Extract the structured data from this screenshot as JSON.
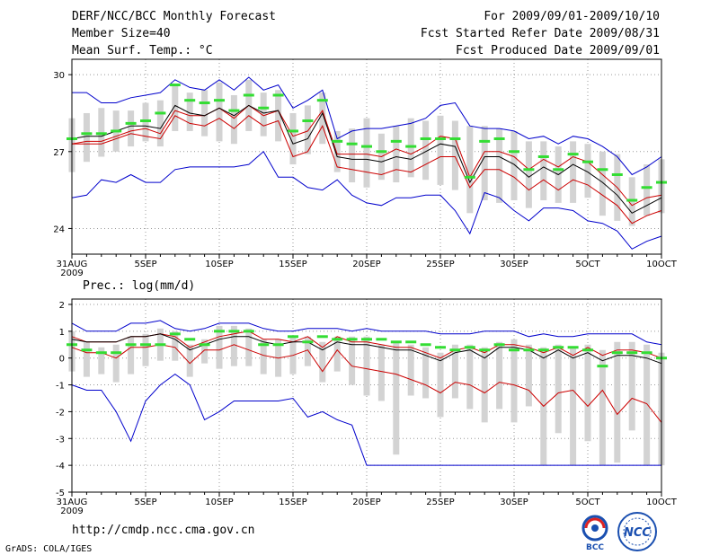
{
  "header": {
    "title": "DERF/NCC/BCC Monthly Forecast",
    "member_size": "Member Size=40",
    "variable": "Mean Surf. Temp.: °C",
    "period": "For 2009/09/01-2009/10/10",
    "started": "Fcst Started Refer Date 2009/08/31",
    "produced": "Fcst Produced Date 2009/09/01"
  },
  "footer": {
    "url": "http://cmdp.ncc.cma.gov.cn",
    "credit": "GrADS: COLA/IGES",
    "logo_bcc": "BCC",
    "logo_ncc": "NCC"
  },
  "colors": {
    "mean": "#000000",
    "p25_75": "#cc0000",
    "extreme": "#0000cc",
    "box": "#d3d3d3",
    "obs": "#33dd33"
  },
  "chart_data": [
    {
      "type": "line",
      "title": "Mean Surf. Temp.: °C",
      "days": 40,
      "ylim": [
        23,
        30.6
      ],
      "yticks": [
        24,
        27,
        30
      ],
      "xtick_days": [
        0,
        5,
        10,
        15,
        20,
        25,
        30,
        35,
        40
      ],
      "xtick_labels": [
        "31AUG",
        "5SEP",
        "10SEP",
        "15SEP",
        "20SEP",
        "25SEP",
        "30SEP",
        "5OCT",
        "10OCT"
      ],
      "xtick_sublabel": "2009",
      "series": [
        {
          "name": "max",
          "values": [
            29.3,
            29.3,
            28.9,
            28.9,
            29.1,
            29.2,
            29.3,
            29.8,
            29.5,
            29.4,
            29.8,
            29.4,
            29.9,
            29.4,
            29.6,
            28.7,
            29.0,
            29.4,
            27.5,
            27.8,
            27.9,
            27.9,
            28.0,
            28.1,
            28.3,
            28.8,
            28.9,
            28.0,
            27.9,
            27.9,
            27.8,
            27.5,
            27.6,
            27.3,
            27.6,
            27.5,
            27.2,
            26.8,
            26.1,
            26.4,
            26.8
          ]
        },
        {
          "name": "p75",
          "values": [
            27.3,
            27.4,
            27.4,
            27.6,
            27.8,
            27.9,
            27.7,
            28.6,
            28.4,
            28.4,
            28.7,
            28.3,
            28.8,
            28.4,
            28.6,
            27.6,
            27.8,
            28.6,
            26.9,
            26.9,
            26.9,
            26.8,
            27.1,
            26.9,
            27.2,
            27.6,
            27.5,
            26.0,
            27.0,
            27.0,
            26.8,
            26.3,
            26.7,
            26.4,
            26.8,
            26.6,
            26.1,
            25.6,
            24.9,
            25.2,
            25.3
          ]
        },
        {
          "name": "mean",
          "values": [
            27.5,
            27.6,
            27.6,
            27.8,
            28.0,
            28.0,
            27.9,
            28.8,
            28.5,
            28.4,
            28.7,
            28.4,
            28.8,
            28.5,
            28.6,
            27.3,
            27.5,
            28.5,
            26.8,
            26.7,
            26.7,
            26.6,
            26.8,
            26.7,
            27.0,
            27.3,
            27.2,
            25.8,
            26.8,
            26.8,
            26.5,
            26.0,
            26.4,
            26.1,
            26.5,
            26.2,
            25.8,
            25.3,
            24.6,
            24.9,
            25.2
          ]
        },
        {
          "name": "p25",
          "values": [
            27.3,
            27.3,
            27.3,
            27.5,
            27.7,
            27.6,
            27.5,
            28.4,
            28.1,
            28.0,
            28.3,
            27.9,
            28.4,
            28.0,
            28.2,
            26.8,
            27.0,
            28.0,
            26.4,
            26.3,
            26.2,
            26.1,
            26.3,
            26.2,
            26.5,
            26.8,
            26.8,
            25.6,
            26.3,
            26.3,
            26.0,
            25.5,
            25.9,
            25.5,
            25.9,
            25.7,
            25.3,
            24.9,
            24.2,
            24.5,
            24.7
          ]
        },
        {
          "name": "min",
          "values": [
            25.2,
            25.3,
            25.9,
            25.8,
            26.1,
            25.8,
            25.8,
            26.3,
            26.4,
            26.4,
            26.4,
            26.4,
            26.5,
            27.0,
            26.0,
            26.0,
            25.6,
            25.5,
            25.9,
            25.3,
            25.0,
            24.9,
            25.2,
            25.2,
            25.3,
            25.3,
            24.7,
            23.8,
            25.4,
            25.2,
            24.7,
            24.3,
            24.8,
            24.8,
            24.7,
            24.3,
            24.2,
            23.9,
            23.2,
            23.5,
            23.7
          ]
        },
        {
          "name": "observed",
          "values": [
            27.5,
            27.7,
            27.7,
            27.8,
            28.1,
            28.2,
            28.5,
            29.6,
            29.0,
            28.9,
            29.0,
            28.6,
            29.2,
            28.7,
            29.2,
            27.8,
            28.2,
            29.0,
            27.4,
            27.3,
            27.2,
            27.0,
            27.4,
            27.2,
            27.5,
            27.5,
            27.5,
            26.0,
            27.4,
            27.5,
            27.0,
            26.3,
            26.8,
            26.3,
            26.9,
            26.6,
            26.3,
            26.1,
            25.1,
            25.6,
            25.8
          ]
        },
        {
          "name": "box_hi",
          "values": [
            28.3,
            28.5,
            28.7,
            28.6,
            28.6,
            28.9,
            29.0,
            29.6,
            29.3,
            29.4,
            29.7,
            29.2,
            29.8,
            29.3,
            29.4,
            28.5,
            28.8,
            29.3,
            27.8,
            27.9,
            28.3,
            27.7,
            28.0,
            28.3,
            28.2,
            28.4,
            28.2,
            28.0,
            28.0,
            27.9,
            27.8,
            27.4,
            27.4,
            27.2,
            27.4,
            27.3,
            27.0,
            26.9,
            26.0,
            26.5,
            26.7
          ]
        },
        {
          "name": "box_lo",
          "values": [
            26.2,
            26.6,
            26.8,
            27.0,
            27.2,
            27.4,
            27.2,
            27.8,
            27.8,
            27.6,
            27.4,
            27.3,
            27.8,
            27.6,
            27.4,
            26.5,
            26.9,
            27.3,
            26.2,
            25.8,
            25.6,
            25.9,
            25.8,
            26.0,
            25.9,
            25.7,
            25.5,
            24.6,
            25.1,
            25.0,
            25.1,
            24.8,
            25.1,
            25.0,
            25.0,
            25.2,
            24.5,
            24.3,
            24.1,
            24.5,
            24.6
          ]
        }
      ]
    },
    {
      "type": "line",
      "title": "Prec.: log(mm/d)",
      "days": 40,
      "ylim": [
        -5,
        2.2
      ],
      "yticks": [
        -5,
        -4,
        -3,
        -2,
        -1,
        0,
        1,
        2
      ],
      "xtick_days": [
        0,
        5,
        10,
        15,
        20,
        25,
        30,
        35,
        40
      ],
      "xtick_labels": [
        "31AUG",
        "5SEP",
        "10SEP",
        "15SEP",
        "20SEP",
        "25SEP",
        "30SEP",
        "5OCT",
        "10OCT"
      ],
      "xtick_sublabel": "2009",
      "series": [
        {
          "name": "max",
          "values": [
            1.3,
            1.0,
            1.0,
            1.0,
            1.3,
            1.3,
            1.4,
            1.1,
            1.0,
            1.1,
            1.3,
            1.3,
            1.3,
            1.1,
            1.0,
            1.0,
            1.1,
            1.1,
            1.1,
            1.0,
            1.1,
            1.0,
            1.0,
            1.0,
            1.0,
            0.9,
            0.9,
            0.9,
            1.0,
            1.0,
            1.0,
            0.8,
            0.9,
            0.8,
            0.8,
            0.9,
            0.9,
            0.9,
            0.9,
            0.6,
            0.5
          ]
        },
        {
          "name": "p75",
          "values": [
            0.8,
            0.6,
            0.6,
            0.6,
            0.8,
            0.8,
            0.9,
            0.8,
            0.4,
            0.6,
            0.8,
            0.9,
            1.0,
            0.7,
            0.7,
            0.6,
            0.8,
            0.4,
            0.8,
            0.6,
            0.6,
            0.5,
            0.4,
            0.4,
            0.2,
            0.0,
            0.3,
            0.4,
            0.2,
            0.5,
            0.5,
            0.4,
            0.2,
            0.4,
            0.1,
            0.4,
            0.1,
            0.3,
            0.3,
            0.2,
            0.0
          ]
        },
        {
          "name": "mean",
          "values": [
            0.7,
            0.6,
            0.6,
            0.6,
            0.8,
            0.8,
            0.9,
            0.7,
            0.3,
            0.5,
            0.7,
            0.8,
            0.8,
            0.6,
            0.5,
            0.6,
            0.6,
            0.3,
            0.6,
            0.5,
            0.5,
            0.4,
            0.3,
            0.3,
            0.1,
            -0.1,
            0.2,
            0.3,
            0.0,
            0.4,
            0.4,
            0.3,
            0.0,
            0.3,
            0.0,
            0.2,
            -0.1,
            0.1,
            0.1,
            0.0,
            -0.2
          ]
        },
        {
          "name": "p25",
          "values": [
            0.4,
            0.2,
            0.2,
            0.0,
            0.4,
            0.4,
            0.5,
            0.4,
            -0.2,
            0.3,
            0.3,
            0.5,
            0.3,
            0.1,
            0.0,
            0.1,
            0.3,
            -0.5,
            0.3,
            -0.3,
            -0.4,
            -0.5,
            -0.6,
            -0.8,
            -1.0,
            -1.3,
            -0.9,
            -1.0,
            -1.3,
            -0.9,
            -1.0,
            -1.2,
            -1.8,
            -1.3,
            -1.2,
            -1.8,
            -1.2,
            -2.1,
            -1.5,
            -1.7,
            -2.4
          ]
        },
        {
          "name": "min",
          "values": [
            -1.0,
            -1.2,
            -1.2,
            -2.0,
            -3.1,
            -1.6,
            -1.0,
            -0.6,
            -1.0,
            -2.3,
            -2.0,
            -1.6,
            -1.6,
            -1.6,
            -1.6,
            -1.5,
            -2.2,
            -2.0,
            -2.3,
            -2.5,
            -4.0,
            -4.0,
            -4.0,
            -4.0,
            -4.0,
            -4.0,
            -4.0,
            -4.0,
            -4.0,
            -4.0,
            -4.0,
            -4.0,
            -4.0,
            -4.0,
            -4.0,
            -4.0,
            -4.0,
            -4.0,
            -4.0,
            -4.0,
            -4.0
          ]
        },
        {
          "name": "observed",
          "values": [
            0.5,
            0.3,
            0.2,
            0.2,
            0.5,
            0.5,
            0.5,
            0.9,
            0.7,
            0.5,
            1.0,
            1.0,
            1.0,
            0.5,
            0.5,
            0.8,
            0.6,
            0.8,
            0.7,
            0.7,
            0.7,
            0.7,
            0.6,
            0.6,
            0.5,
            0.4,
            0.3,
            0.4,
            0.3,
            0.5,
            0.3,
            0.3,
            0.3,
            0.4,
            0.4,
            0.3,
            -0.3,
            0.2,
            0.2,
            0.2,
            0.0
          ]
        },
        {
          "name": "box_hi",
          "values": [
            1.0,
            0.6,
            0.4,
            0.5,
            0.8,
            0.9,
            1.1,
            1.0,
            0.5,
            0.7,
            1.2,
            1.2,
            1.1,
            0.7,
            0.7,
            0.8,
            0.8,
            0.6,
            0.8,
            0.8,
            0.8,
            0.5,
            0.6,
            0.5,
            0.4,
            0.2,
            0.5,
            0.5,
            0.4,
            0.6,
            0.7,
            0.5,
            0.4,
            0.5,
            0.4,
            0.5,
            0.3,
            0.6,
            0.6,
            0.5,
            0.2
          ]
        },
        {
          "name": "box_lo",
          "values": [
            -0.5,
            -0.7,
            -0.6,
            -0.9,
            -0.6,
            -0.3,
            -0.1,
            -0.1,
            -0.7,
            -0.2,
            -0.4,
            -0.3,
            -0.3,
            -0.6,
            -0.7,
            -0.6,
            -0.3,
            -0.9,
            -0.5,
            -1.0,
            -1.4,
            -1.6,
            -3.6,
            -1.4,
            -1.5,
            -2.2,
            -1.5,
            -1.9,
            -2.4,
            -1.9,
            -2.4,
            -1.8,
            -4.0,
            -2.8,
            -4.0,
            -3.1,
            -4.0,
            -3.9,
            -2.7,
            -4.0,
            -4.0
          ]
        }
      ]
    }
  ]
}
